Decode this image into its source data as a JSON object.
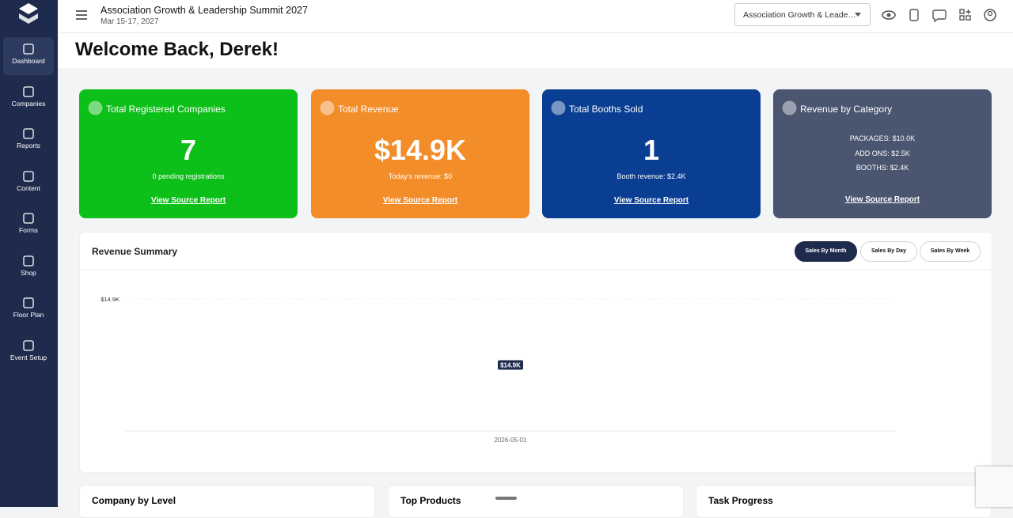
{
  "header": {
    "title": "Association Growth & Leadership Summit 2027",
    "dates": "Mar 15-17, 2027",
    "event_select": "Association Growth & Leade…"
  },
  "nav": [
    "Dashboard",
    "Companies",
    "Reports",
    "Content",
    "Forms",
    "Shop",
    "Floor Plan",
    "Event Setup"
  ],
  "welcome": "Welcome Back, Derek!",
  "cards": [
    {
      "title": "Total Registered Companies",
      "value": "7",
      "note": "0 pending registrations",
      "link": "View Source Report"
    },
    {
      "title": "Total Revenue",
      "value": "$14.9K",
      "note": "Today's revenue: $0",
      "link": "View Source Report"
    },
    {
      "title": "Total Booths Sold",
      "value": "1",
      "note": "Booth revenue: $2.4K",
      "link": "View Source Report"
    },
    {
      "title": "Revenue by Category",
      "lines": [
        "PACKAGES: $10.0K",
        "ADD ONS: $2.5K",
        "BOOTHS: $2.4K"
      ],
      "link": "View Source Report"
    }
  ],
  "revenue_summary": {
    "title": "Revenue Summary",
    "buttons": [
      "Sales By Month",
      "Sales By Day",
      "Sales By Week"
    ],
    "chart": {
      "type": "line",
      "x": [
        "2026-05-01"
      ],
      "values": [
        14900
      ],
      "value_labels": [
        "$14.9K"
      ],
      "ylim": [
        14899,
        14901
      ],
      "yticks": [
        {
          "value": 14901,
          "label": "$14.9K"
        }
      ],
      "color": "#1f2b4d",
      "grid": true
    }
  },
  "panels": [
    "Company by Level",
    "Top Products",
    "Task Progress"
  ]
}
